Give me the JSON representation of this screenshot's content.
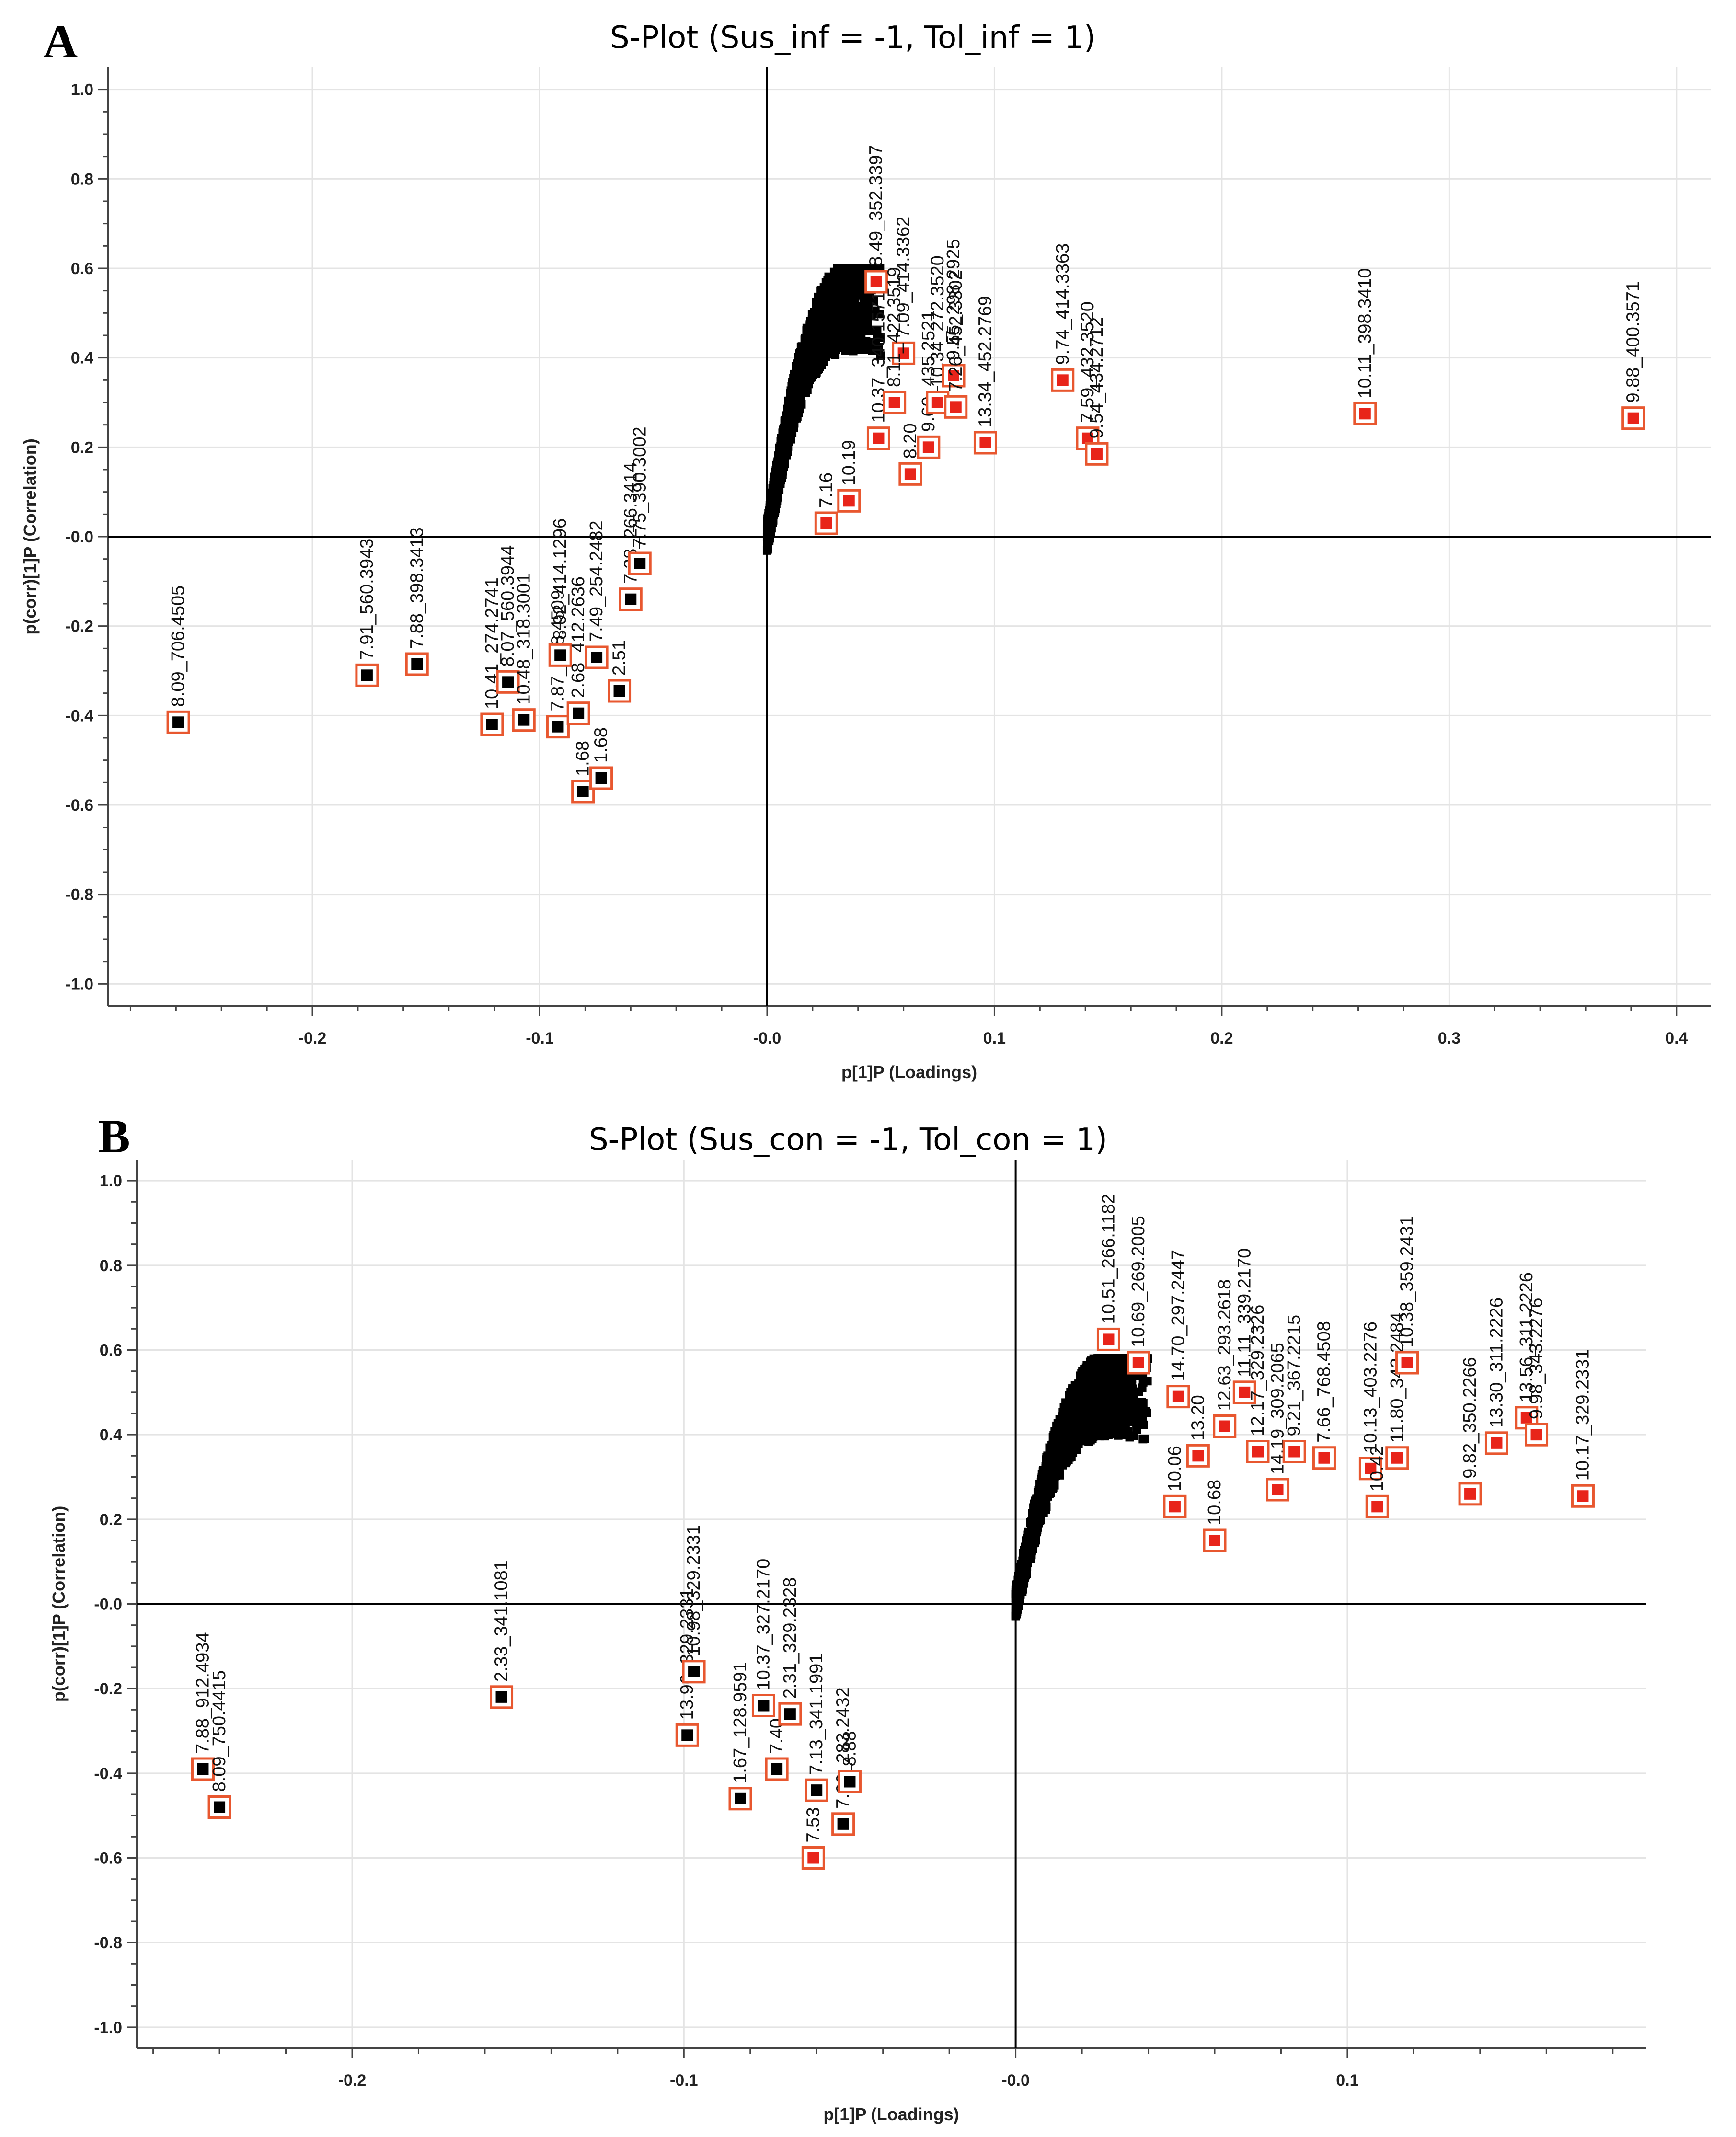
{
  "colors": {
    "black_points": "#000000",
    "highlight_fill": "#e8241a",
    "highlight_box": "#e8572f",
    "grid": "#e4e4e4"
  },
  "chart_data": [
    {
      "panel": "A",
      "type": "scatter",
      "title": "S-Plot (Sus_inf = -1, Tol_inf = 1)",
      "xlabel": "p[1]P (Loadings)",
      "ylabel": "p(corr)[1]P (Correlation)",
      "xlim": [
        -0.29,
        0.415
      ],
      "ylim": [
        -1.05,
        1.05
      ],
      "xticks": [
        -0.2,
        -0.1,
        -0.0,
        0.1,
        0.2,
        0.3,
        0.4
      ],
      "xtick_labels": [
        "-0.2",
        "-0.1",
        "-0.0",
        "0.1",
        "0.2",
        "0.3",
        "0.4"
      ],
      "yticks": [
        1.0,
        0.8,
        0.6,
        0.4,
        0.2,
        0.0,
        -0.2,
        -0.4,
        -0.6,
        -0.8,
        -1.0
      ],
      "ytick_labels": [
        "1.0",
        "0.8",
        "0.6",
        "0.4",
        "0.2",
        "-0.0",
        "-0.2",
        "-0.4",
        "-0.6",
        "-0.8",
        "-1.0"
      ],
      "grid": true,
      "bulk_cloud": {
        "x_range": [
          -0.045,
          0.05
        ],
        "y_range": [
          -0.57,
          0.6
        ],
        "count": 1400
      },
      "marked_points": [
        {
          "label": "8.09_706.4505",
          "x": -0.259,
          "y": -0.415,
          "color": "black"
        },
        {
          "label": "7.91_560.3943",
          "x": -0.176,
          "y": -0.31,
          "color": "black"
        },
        {
          "label": "7.88_398.3413",
          "x": -0.154,
          "y": -0.285,
          "color": "black"
        },
        {
          "label": "10.41_274.2741",
          "x": -0.121,
          "y": -0.42,
          "color": "black"
        },
        {
          "label": "8.07_560.3944",
          "x": -0.114,
          "y": -0.325,
          "color": "black"
        },
        {
          "label": "10.48_318.3001",
          "x": -0.107,
          "y": -0.41,
          "color": "black"
        },
        {
          "label": "7.87_448.4509",
          "x": -0.092,
          "y": -0.425,
          "color": "black"
        },
        {
          "label": "8.92_414.1296",
          "x": -0.091,
          "y": -0.265,
          "color": "black"
        },
        {
          "label": "1.68",
          "x": -0.081,
          "y": -0.57,
          "color": "black"
        },
        {
          "label": "1.68",
          "x": -0.073,
          "y": -0.54,
          "color": "black"
        },
        {
          "label": "2.68_412.2636",
          "x": -0.083,
          "y": -0.395,
          "color": "black"
        },
        {
          "label": "2.51",
          "x": -0.065,
          "y": -0.345,
          "color": "black"
        },
        {
          "label": "7.28_266.3414",
          "x": -0.06,
          "y": -0.14,
          "color": "black"
        },
        {
          "label": "7.75_390.3002",
          "x": -0.056,
          "y": -0.06,
          "color": "black"
        },
        {
          "label": "7.49_254.2482",
          "x": -0.075,
          "y": -0.27,
          "color": "black"
        },
        {
          "label": "7.16",
          "x": 0.026,
          "y": 0.03,
          "color": "red"
        },
        {
          "label": "10.19",
          "x": 0.036,
          "y": 0.08,
          "color": "red"
        },
        {
          "label": "10.37_340.1571",
          "x": 0.049,
          "y": 0.22,
          "color": "red"
        },
        {
          "label": "8.20",
          "x": 0.063,
          "y": 0.14,
          "color": "red"
        },
        {
          "label": "9.60_435.2521",
          "x": 0.071,
          "y": 0.2,
          "color": "red"
        },
        {
          "label": "8.49_352.3397",
          "x": 0.048,
          "y": 0.57,
          "color": "red"
        },
        {
          "label": "7.09_414.3362",
          "x": 0.06,
          "y": 0.41,
          "color": "red"
        },
        {
          "label": "8.11_422.3519",
          "x": 0.056,
          "y": 0.3,
          "color": "red"
        },
        {
          "label": "10.34_272.3520",
          "x": 0.075,
          "y": 0.3,
          "color": "red"
        },
        {
          "label": "9.55_298.2925",
          "x": 0.082,
          "y": 0.36,
          "color": "red"
        },
        {
          "label": "7.26_452.3302",
          "x": 0.083,
          "y": 0.29,
          "color": "red"
        },
        {
          "label": "13.34_452.2769",
          "x": 0.096,
          "y": 0.21,
          "color": "red"
        },
        {
          "label": "9.74_414.3363",
          "x": 0.13,
          "y": 0.35,
          "color": "red"
        },
        {
          "label": "7.59_432.3520",
          "x": 0.141,
          "y": 0.22,
          "color": "red"
        },
        {
          "label": "9.54_434.2712",
          "x": 0.145,
          "y": 0.185,
          "color": "red"
        },
        {
          "label": "10.11_398.3410",
          "x": 0.263,
          "y": 0.275,
          "color": "red"
        },
        {
          "label": "9.88_400.3571",
          "x": 0.381,
          "y": 0.265,
          "color": "red"
        }
      ]
    },
    {
      "panel": "B",
      "type": "scatter",
      "title": "S-Plot (Sus_con = -1, Tol_con = 1)",
      "xlabel": "p[1]P (Loadings)",
      "ylabel": "p(corr)[1]P (Correlation)",
      "xlim": [
        -0.265,
        0.19
      ],
      "ylim": [
        -1.05,
        1.05
      ],
      "xticks": [
        -0.2,
        -0.1,
        -0.0,
        0.1
      ],
      "xtick_labels": [
        "-0.2",
        "-0.1",
        "-0.0",
        "0.1"
      ],
      "yticks": [
        1.0,
        0.8,
        0.6,
        0.4,
        0.2,
        0.0,
        -0.2,
        -0.4,
        -0.6,
        -0.8,
        -1.0
      ],
      "ytick_labels": [
        "1.0",
        "0.8",
        "0.6",
        "0.4",
        "0.2",
        "-0.0",
        "-0.2",
        "-0.4",
        "-0.6",
        "-0.8",
        "-1.0"
      ],
      "grid": true,
      "bulk_cloud": {
        "x_range": [
          -0.035,
          0.04
        ],
        "y_range": [
          -0.48,
          0.58
        ],
        "count": 1400
      },
      "marked_points": [
        {
          "label": "7.88_912.4934",
          "x": -0.245,
          "y": -0.39,
          "color": "black"
        },
        {
          "label": "8.09_750.4415",
          "x": -0.24,
          "y": -0.48,
          "color": "black"
        },
        {
          "label": "2.33_341.1081",
          "x": -0.155,
          "y": -0.22,
          "color": "black"
        },
        {
          "label": "13.96_329.2331",
          "x": -0.099,
          "y": -0.31,
          "color": "black"
        },
        {
          "label": "10.98_329.2331",
          "x": -0.097,
          "y": -0.16,
          "color": "black"
        },
        {
          "label": "1.67_128.9591",
          "x": -0.083,
          "y": -0.46,
          "color": "black"
        },
        {
          "label": "10.37_327.2170",
          "x": -0.076,
          "y": -0.24,
          "color": "black"
        },
        {
          "label": "7.40",
          "x": -0.072,
          "y": -0.39,
          "color": "black"
        },
        {
          "label": "2.31_329.2328",
          "x": -0.068,
          "y": -0.26,
          "color": "black"
        },
        {
          "label": "7.13_341.1991",
          "x": -0.06,
          "y": -0.44,
          "color": "black"
        },
        {
          "label": "7.53",
          "x": -0.061,
          "y": -0.6,
          "color": "red"
        },
        {
          "label": "7.09_283.2432",
          "x": -0.052,
          "y": -0.52,
          "color": "black"
        },
        {
          "label": "8.88",
          "x": -0.05,
          "y": -0.42,
          "color": "black"
        },
        {
          "label": "10.51_266.1182",
          "x": 0.028,
          "y": 0.625,
          "color": "red"
        },
        {
          "label": "10.69_269.2005",
          "x": 0.037,
          "y": 0.57,
          "color": "red"
        },
        {
          "label": "14.70_297.2447",
          "x": 0.049,
          "y": 0.49,
          "color": "red"
        },
        {
          "label": "10.06",
          "x": 0.048,
          "y": 0.23,
          "color": "red"
        },
        {
          "label": "13.20",
          "x": 0.055,
          "y": 0.35,
          "color": "red"
        },
        {
          "label": "10.68",
          "x": 0.06,
          "y": 0.15,
          "color": "red"
        },
        {
          "label": "12.63_293.2618",
          "x": 0.063,
          "y": 0.42,
          "color": "red"
        },
        {
          "label": "11.11_339.2170",
          "x": 0.069,
          "y": 0.5,
          "color": "red"
        },
        {
          "label": "12.17_329.2326",
          "x": 0.073,
          "y": 0.36,
          "color": "red"
        },
        {
          "label": "14.19_309.2065",
          "x": 0.079,
          "y": 0.27,
          "color": "red"
        },
        {
          "label": "9.21_367.2215",
          "x": 0.084,
          "y": 0.36,
          "color": "red"
        },
        {
          "label": "7.66_768.4508",
          "x": 0.093,
          "y": 0.345,
          "color": "red"
        },
        {
          "label": "10.13_403.2276",
          "x": 0.107,
          "y": 0.32,
          "color": "red"
        },
        {
          "label": "10.42",
          "x": 0.109,
          "y": 0.23,
          "color": "red"
        },
        {
          "label": "11.80_343.2484",
          "x": 0.115,
          "y": 0.345,
          "color": "red"
        },
        {
          "label": "10.38_359.2431",
          "x": 0.118,
          "y": 0.57,
          "color": "red"
        },
        {
          "label": "9.82_350.2266",
          "x": 0.137,
          "y": 0.26,
          "color": "red"
        },
        {
          "label": "13.30_311.2226",
          "x": 0.145,
          "y": 0.38,
          "color": "red"
        },
        {
          "label": "13.56_311.2226",
          "x": 0.154,
          "y": 0.44,
          "color": "red"
        },
        {
          "label": "9.98_343.2276",
          "x": 0.157,
          "y": 0.4,
          "color": "red"
        },
        {
          "label": "10.17_329.2331",
          "x": 0.171,
          "y": 0.255,
          "color": "red"
        }
      ]
    }
  ]
}
